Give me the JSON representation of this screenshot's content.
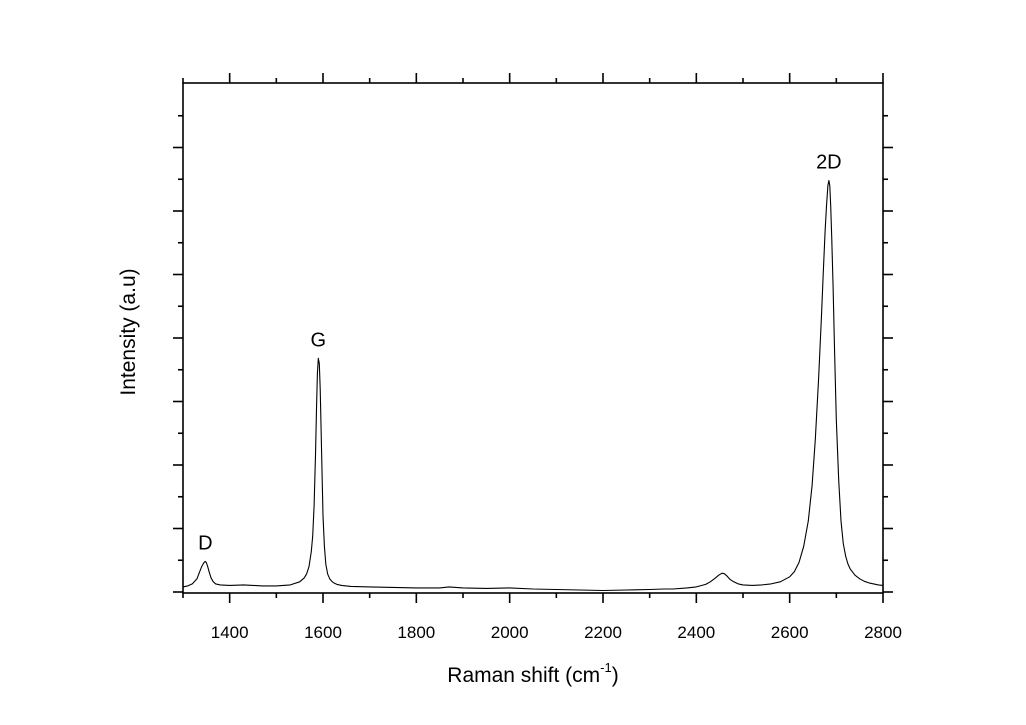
{
  "chart_data": {
    "type": "line",
    "title": "",
    "xlabel": "Raman shift (cm",
    "xlabel_sup": "-1",
    "xlabel_close": ")",
    "ylabel": "Intensity (a.u)",
    "xlim": [
      1300,
      2800
    ],
    "ylim": [
      0,
      1
    ],
    "y_tick_labels_shown": false,
    "x_major_ticks": [
      1400,
      1600,
      1800,
      2000,
      2200,
      2400,
      2600,
      2800
    ],
    "x_tick_labels": [
      "1400",
      "1600",
      "1800",
      "2000",
      "2200",
      "2400",
      "2600",
      "2800"
    ],
    "x_minor_ticks": [
      1300,
      1500,
      1700,
      1900,
      2100,
      2300,
      2500,
      2700
    ],
    "y_major_ticks": [
      0,
      0.125,
      0.25,
      0.375,
      0.5,
      0.625,
      0.75,
      0.875
    ],
    "grid": false,
    "legend": "none",
    "series": [
      {
        "x": [
          1300,
          1310,
          1320,
          1330,
          1335,
          1340,
          1345,
          1348,
          1350,
          1353,
          1356,
          1360,
          1365,
          1370,
          1380,
          1400,
          1430,
          1450,
          1470,
          1500,
          1530,
          1550,
          1560,
          1565,
          1570,
          1575,
          1578,
          1581,
          1584,
          1586,
          1588,
          1590,
          1592,
          1594,
          1596,
          1598,
          1600,
          1603,
          1606,
          1610,
          1615,
          1620,
          1625,
          1630,
          1640,
          1660,
          1700,
          1750,
          1800,
          1850,
          1870,
          1900,
          1950,
          2000,
          2050,
          2100,
          2150,
          2200,
          2250,
          2300,
          2330,
          2350,
          2380,
          2400,
          2420,
          2430,
          2440,
          2448,
          2455,
          2460,
          2465,
          2472,
          2480,
          2490,
          2500,
          2520,
          2540,
          2560,
          2580,
          2600,
          2610,
          2620,
          2630,
          2640,
          2648,
          2655,
          2662,
          2668,
          2672,
          2676,
          2679,
          2682,
          2684,
          2686,
          2688,
          2690,
          2693,
          2696,
          2700,
          2705,
          2710,
          2715,
          2720,
          2725,
          2730,
          2740,
          2750,
          2760,
          2770,
          2780,
          2790,
          2800
        ],
        "y": [
          0.01,
          0.012,
          0.016,
          0.026,
          0.038,
          0.05,
          0.058,
          0.06,
          0.058,
          0.05,
          0.04,
          0.028,
          0.02,
          0.016,
          0.014,
          0.013,
          0.014,
          0.013,
          0.012,
          0.012,
          0.014,
          0.02,
          0.028,
          0.036,
          0.05,
          0.08,
          0.11,
          0.17,
          0.27,
          0.36,
          0.43,
          0.46,
          0.45,
          0.4,
          0.32,
          0.23,
          0.15,
          0.09,
          0.055,
          0.035,
          0.025,
          0.02,
          0.017,
          0.015,
          0.013,
          0.011,
          0.01,
          0.009,
          0.008,
          0.008,
          0.01,
          0.008,
          0.007,
          0.008,
          0.006,
          0.005,
          0.004,
          0.003,
          0.004,
          0.005,
          0.006,
          0.006,
          0.008,
          0.01,
          0.015,
          0.02,
          0.027,
          0.033,
          0.037,
          0.036,
          0.032,
          0.025,
          0.02,
          0.016,
          0.014,
          0.013,
          0.014,
          0.016,
          0.02,
          0.03,
          0.04,
          0.058,
          0.09,
          0.14,
          0.21,
          0.3,
          0.42,
          0.54,
          0.63,
          0.71,
          0.76,
          0.8,
          0.81,
          0.8,
          0.76,
          0.7,
          0.6,
          0.48,
          0.34,
          0.22,
          0.14,
          0.095,
          0.07,
          0.055,
          0.045,
          0.033,
          0.026,
          0.021,
          0.018,
          0.016,
          0.014,
          0.013
        ]
      }
    ],
    "annotations": [
      {
        "text": "D",
        "x": 1348,
        "y": 0.06
      },
      {
        "text": "G",
        "x": 1590,
        "y": 0.46
      },
      {
        "text": "2D",
        "x": 2684,
        "y": 0.81
      }
    ]
  }
}
